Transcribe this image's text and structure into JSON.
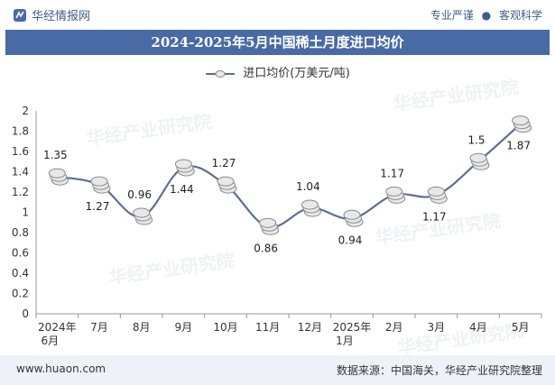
{
  "header": {
    "brand": "华经情报网",
    "tagline_left": "专业严谨",
    "tagline_sep": "●",
    "tagline_right": "客观科学"
  },
  "footer": {
    "site": "www.huaon.com",
    "source": "数据来源：中国海关，华经产业研究院整理"
  },
  "watermark": "华经产业研究院",
  "colors": {
    "title_bg": "#4a6aa5",
    "line": "#5a6f9a",
    "coin_face": "#e8e8e8",
    "coin_edge": "#8a8a8a"
  },
  "chart_data": {
    "type": "line",
    "title": "2024-2025年5月中国稀土月度进口均价",
    "categories": [
      "2024年6月",
      "7月",
      "8月",
      "9月",
      "10月",
      "11月",
      "12月",
      "2025年1月",
      "2月",
      "3月",
      "4月",
      "5月"
    ],
    "series": [
      {
        "name": "进口均价(万美元/吨)",
        "values": [
          1.35,
          1.27,
          0.96,
          1.44,
          1.27,
          0.86,
          1.04,
          0.94,
          1.17,
          1.17,
          1.5,
          1.87
        ]
      }
    ],
    "ylim": [
      0,
      2
    ],
    "yticks": [
      "0",
      "0.2",
      "0.4",
      "0.6",
      "0.8",
      "1",
      "1.2",
      "1.4",
      "1.6",
      "1.8",
      "2"
    ],
    "label_positions": [
      "above",
      "below",
      "above",
      "below",
      "above",
      "below",
      "above",
      "below",
      "above",
      "below",
      "above",
      "below"
    ]
  }
}
